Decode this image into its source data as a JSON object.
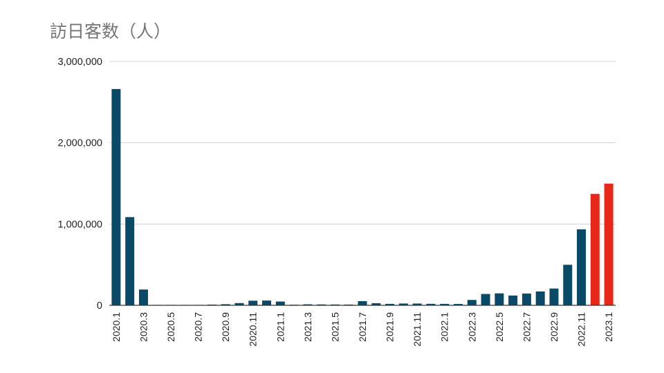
{
  "chart_data": {
    "type": "bar",
    "title": "訪日客数（人）",
    "xlabel": "",
    "ylabel": "",
    "ylim": [
      0,
      3000000
    ],
    "yticks": [
      0,
      1000000,
      2000000,
      3000000
    ],
    "ytick_labels": [
      "0",
      "1,000,000",
      "2,000,000",
      "3,000,000"
    ],
    "grid": true,
    "legend": "none",
    "categories": [
      "2020.1",
      "2020.2",
      "2020.3",
      "2020.4",
      "2020.5",
      "2020.6",
      "2020.7",
      "2020.8",
      "2020.9",
      "2020.10",
      "2020.11",
      "2020.12",
      "2021.1",
      "2021.2",
      "2021.3",
      "2021.4",
      "2021.5",
      "2021.6",
      "2021.7",
      "2021.8",
      "2021.9",
      "2021.10",
      "2021.11",
      "2021.12",
      "2022.1",
      "2022.2",
      "2022.3",
      "2022.4",
      "2022.5",
      "2022.6",
      "2022.7",
      "2022.8",
      "2022.9",
      "2022.10",
      "2022.11",
      "2022.12",
      "2023.1"
    ],
    "xtick_labels": [
      "2020.1",
      "2020.3",
      "2020.5",
      "2020.7",
      "2020.9",
      "2020.11",
      "2021.1",
      "2021.3",
      "2021.5",
      "2021.7",
      "2021.9",
      "2021.11",
      "2022.1",
      "2022.3",
      "2022.5",
      "2022.7",
      "2022.9",
      "2022.11",
      "2023.1"
    ],
    "values": [
      2661000,
      1085000,
      194000,
      2900,
      1700,
      2600,
      3800,
      8700,
      13700,
      27400,
      56700,
      58700,
      46500,
      7400,
      12300,
      10900,
      10000,
      9300,
      51100,
      25900,
      17700,
      22100,
      21900,
      18200,
      17800,
      16700,
      66100,
      139500,
      147000,
      120400,
      144500,
      169900,
      206500,
      498600,
      934500,
      1371000,
      1497300
    ],
    "series_colors": [
      "#0b4a66",
      "#0b4a66",
      "#0b4a66",
      "#0b4a66",
      "#0b4a66",
      "#0b4a66",
      "#0b4a66",
      "#0b4a66",
      "#0b4a66",
      "#0b4a66",
      "#0b4a66",
      "#0b4a66",
      "#0b4a66",
      "#0b4a66",
      "#0b4a66",
      "#0b4a66",
      "#0b4a66",
      "#0b4a66",
      "#0b4a66",
      "#0b4a66",
      "#0b4a66",
      "#0b4a66",
      "#0b4a66",
      "#0b4a66",
      "#0b4a66",
      "#0b4a66",
      "#0b4a66",
      "#0b4a66",
      "#0b4a66",
      "#0b4a66",
      "#0b4a66",
      "#0b4a66",
      "#0b4a66",
      "#0b4a66",
      "#0b4a66",
      "#e8261a",
      "#e8261a"
    ],
    "colors": {
      "primary": "#0b4a66",
      "highlight": "#e8261a",
      "grid": "#d0d0d0",
      "axis": "#333333"
    }
  }
}
